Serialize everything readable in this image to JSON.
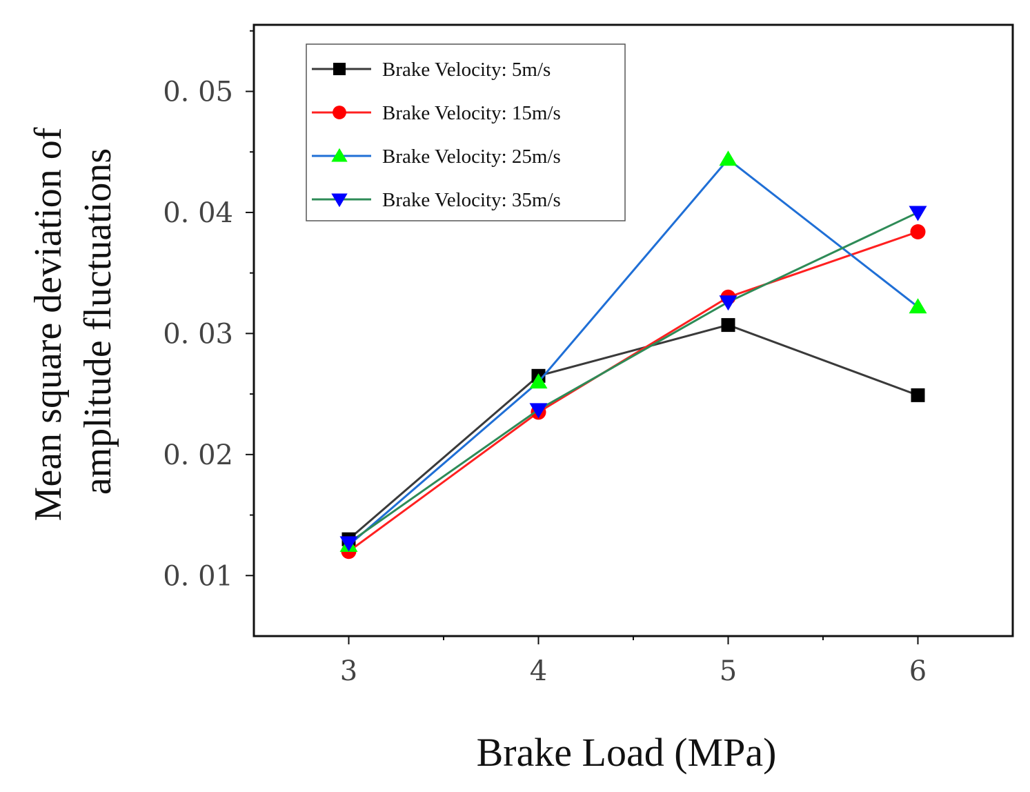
{
  "chart_data": {
    "type": "line",
    "xlabel": "Brake Load (MPa)",
    "ylabel_line1": "Mean square deviation of",
    "ylabel_line2": "amplitude fluctuations",
    "x": [
      3,
      4,
      5,
      6
    ],
    "x_tick_labels": [
      "3",
      "4",
      "5",
      "6"
    ],
    "y_tick_labels": [
      "0. 01",
      "0. 02",
      "0. 03",
      "0. 04",
      "0. 05"
    ],
    "y_ticks": [
      0.01,
      0.02,
      0.03,
      0.04,
      0.05
    ],
    "xlim": [
      2.5,
      6.5
    ],
    "ylim": [
      0.005,
      0.0555
    ],
    "legend_position": "top-left",
    "series": [
      {
        "name": "Brake Velocity: 5m/s",
        "values": [
          0.013,
          0.0265,
          0.0307,
          0.0249
        ],
        "color": "#3a3a3a",
        "marker": "square",
        "marker_color": "#000000"
      },
      {
        "name": "Brake Velocity: 15m/s",
        "values": [
          0.012,
          0.0235,
          0.033,
          0.0384
        ],
        "color": "#ff2020",
        "marker": "circle",
        "marker_color": "#ff0000"
      },
      {
        "name": "Brake Velocity: 25m/s",
        "values": [
          0.0125,
          0.026,
          0.0444,
          0.0322
        ],
        "color": "#1f6fd6",
        "marker": "triangle-up",
        "marker_color": "#00ff00"
      },
      {
        "name": "Brake Velocity: 35m/s",
        "values": [
          0.0127,
          0.0237,
          0.0326,
          0.04
        ],
        "color": "#2e8b57",
        "marker": "triangle-down",
        "marker_color": "#0000ff"
      }
    ]
  }
}
